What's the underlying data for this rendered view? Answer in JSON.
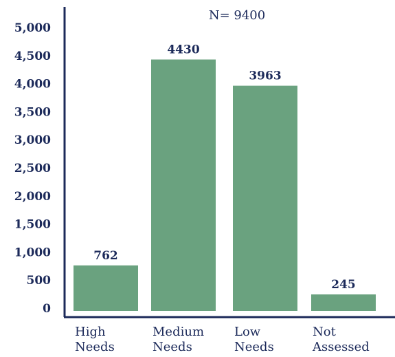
{
  "chart_data": {
    "type": "bar",
    "annotation": "N= 9400",
    "categories": [
      [
        "High",
        "Needs"
      ],
      [
        "Medium",
        "Needs"
      ],
      [
        "Low",
        "Needs"
      ],
      [
        "Not",
        "Assessed"
      ]
    ],
    "values": [
      762,
      4430,
      3963,
      245
    ],
    "value_labels": [
      "762",
      "4430",
      "3963",
      "245"
    ],
    "ylim": [
      0,
      5000
    ],
    "yticks": [
      0,
      500,
      1000,
      1500,
      2000,
      2500,
      3000,
      3500,
      4000,
      4500,
      5000
    ],
    "ytick_labels": [
      "0",
      "500",
      "1,000",
      "1,500",
      "2,000",
      "2,500",
      "3,000",
      "3,500",
      "4,000",
      "4,500",
      "5,000"
    ],
    "bar_color": "#6aa27f",
    "text_color": "#1c2a5a",
    "grid": false,
    "legend": "none"
  }
}
